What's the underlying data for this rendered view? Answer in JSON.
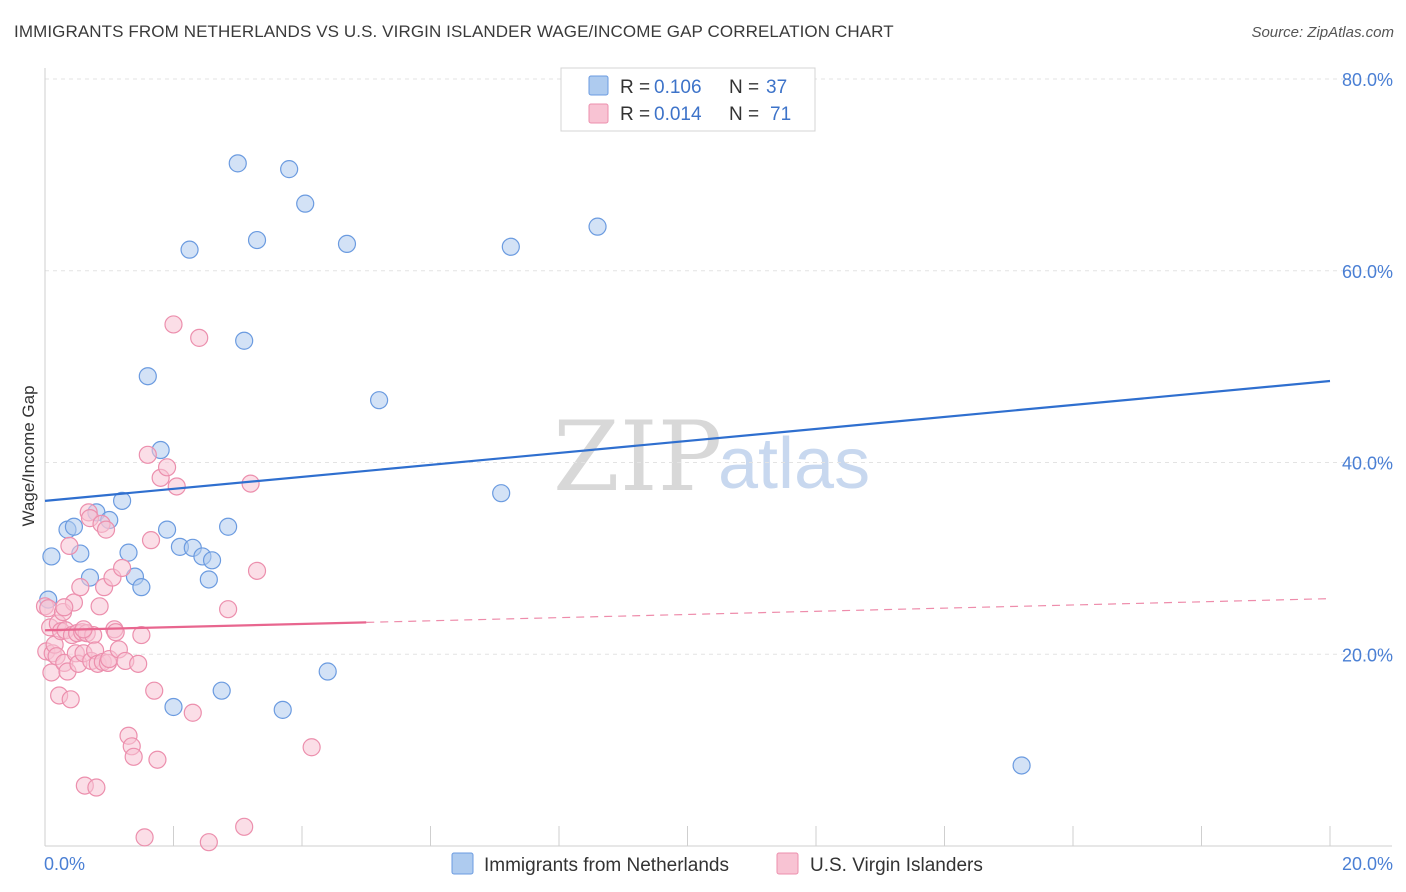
{
  "header": {
    "title": "IMMIGRANTS FROM NETHERLANDS VS U.S. VIRGIN ISLANDER WAGE/INCOME GAP CORRELATION CHART",
    "source": "Source: ZipAtlas.com"
  },
  "watermark": {
    "zip": "ZIP",
    "atlas": "atlas"
  },
  "colors": {
    "blue_fill": "#aecbef",
    "blue_stroke": "#6b9be0",
    "blue_line": "#2f6fcf",
    "pink_fill": "#f8c3d3",
    "pink_stroke": "#ec8fad",
    "pink_line": "#e8668f",
    "tick": "#4a7fd4",
    "grid": "#e3e3e3"
  },
  "legend": {
    "rows": [
      {
        "r_label": "R =",
        "r_value": "0.106",
        "n_label": "N =",
        "n_value": "37"
      },
      {
        "r_label": "R =",
        "r_value": "0.014",
        "n_label": "N =",
        "n_value": "71"
      }
    ]
  },
  "chart_data": {
    "type": "scatter",
    "title": "IMMIGRANTS FROM NETHERLANDS VS U.S. VIRGIN ISLANDER WAGE/INCOME GAP CORRELATION CHART",
    "xlabel": "",
    "ylabel": "Wage/Income Gap",
    "xlim": [
      0,
      20
    ],
    "ylim": [
      0,
      80
    ],
    "x_tick_labels": {
      "left": "0.0%",
      "right": "20.0%"
    },
    "y_ticks": [
      20,
      40,
      60,
      80
    ],
    "y_tick_labels": [
      "20.0%",
      "40.0%",
      "60.0%",
      "80.0%"
    ],
    "legend_position": "top-center",
    "series": [
      {
        "name": "Immigrants from Netherlands",
        "color": "blue",
        "r": 0.106,
        "n": 37,
        "trend": {
          "x0": 0,
          "y0": 36.0,
          "x1": 20,
          "y1": 48.5,
          "dashed_from": null
        },
        "points": [
          [
            0.05,
            25.7
          ],
          [
            0.1,
            30.2
          ],
          [
            0.35,
            33.0
          ],
          [
            0.45,
            33.3
          ],
          [
            0.55,
            30.5
          ],
          [
            0.7,
            28.0
          ],
          [
            0.8,
            34.8
          ],
          [
            1.0,
            34.0
          ],
          [
            1.2,
            36.0
          ],
          [
            1.3,
            30.6
          ],
          [
            1.4,
            28.1
          ],
          [
            1.5,
            27.0
          ],
          [
            1.6,
            49.0
          ],
          [
            1.8,
            41.3
          ],
          [
            1.9,
            33.0
          ],
          [
            2.0,
            14.5
          ],
          [
            2.1,
            31.2
          ],
          [
            2.25,
            62.2
          ],
          [
            2.3,
            31.1
          ],
          [
            2.45,
            30.2
          ],
          [
            2.55,
            27.8
          ],
          [
            2.6,
            29.8
          ],
          [
            2.75,
            16.2
          ],
          [
            2.85,
            33.3
          ],
          [
            3.0,
            71.2
          ],
          [
            3.1,
            52.7
          ],
          [
            3.3,
            63.2
          ],
          [
            3.7,
            14.2
          ],
          [
            3.8,
            70.6
          ],
          [
            4.05,
            67.0
          ],
          [
            4.4,
            18.2
          ],
          [
            4.7,
            62.8
          ],
          [
            5.2,
            46.5
          ],
          [
            7.1,
            36.8
          ],
          [
            7.25,
            62.5
          ],
          [
            8.6,
            64.6
          ],
          [
            15.2,
            8.4
          ]
        ]
      },
      {
        "name": "U.S. Virgin Islanders",
        "color": "pink",
        "r": 0.014,
        "n": 71,
        "trend": {
          "x0": 0,
          "y0": 22.5,
          "x1": 20,
          "y1": 25.8,
          "dashed_from": 5.0
        },
        "points": [
          [
            0.0,
            25.0
          ],
          [
            0.02,
            20.3
          ],
          [
            0.05,
            24.8
          ],
          [
            0.08,
            22.8
          ],
          [
            0.1,
            18.1
          ],
          [
            0.12,
            20.1
          ],
          [
            0.15,
            21.0
          ],
          [
            0.18,
            19.8
          ],
          [
            0.2,
            23.2
          ],
          [
            0.22,
            15.7
          ],
          [
            0.25,
            22.4
          ],
          [
            0.28,
            24.4
          ],
          [
            0.3,
            19.1
          ],
          [
            0.32,
            22.5
          ],
          [
            0.35,
            18.2
          ],
          [
            0.38,
            31.3
          ],
          [
            0.4,
            15.3
          ],
          [
            0.42,
            22.0
          ],
          [
            0.45,
            25.4
          ],
          [
            0.48,
            20.1
          ],
          [
            0.5,
            22.2
          ],
          [
            0.52,
            19.0
          ],
          [
            0.55,
            27.0
          ],
          [
            0.58,
            22.3
          ],
          [
            0.6,
            20.1
          ],
          [
            0.62,
            6.3
          ],
          [
            0.65,
            22.2
          ],
          [
            0.68,
            34.8
          ],
          [
            0.7,
            34.2
          ],
          [
            0.72,
            19.3
          ],
          [
            0.75,
            22.0
          ],
          [
            0.78,
            20.4
          ],
          [
            0.8,
            6.1
          ],
          [
            0.82,
            19.0
          ],
          [
            0.85,
            25.0
          ],
          [
            0.88,
            33.6
          ],
          [
            0.9,
            19.2
          ],
          [
            0.92,
            27.0
          ],
          [
            0.95,
            33.0
          ],
          [
            0.98,
            19.1
          ],
          [
            1.0,
            19.5
          ],
          [
            1.05,
            28.0
          ],
          [
            1.08,
            22.6
          ],
          [
            1.1,
            22.3
          ],
          [
            1.15,
            20.5
          ],
          [
            1.2,
            29.0
          ],
          [
            1.25,
            19.3
          ],
          [
            1.3,
            11.5
          ],
          [
            1.35,
            10.4
          ],
          [
            1.38,
            9.3
          ],
          [
            1.45,
            19.0
          ],
          [
            1.5,
            22.0
          ],
          [
            1.55,
            0.9
          ],
          [
            1.6,
            40.8
          ],
          [
            1.65,
            31.9
          ],
          [
            1.7,
            16.2
          ],
          [
            1.75,
            9.0
          ],
          [
            1.8,
            38.4
          ],
          [
            1.9,
            39.5
          ],
          [
            2.0,
            54.4
          ],
          [
            2.05,
            37.5
          ],
          [
            2.3,
            13.9
          ],
          [
            2.4,
            53.0
          ],
          [
            2.55,
            0.4
          ],
          [
            2.85,
            24.7
          ],
          [
            3.1,
            2.0
          ],
          [
            3.2,
            37.8
          ],
          [
            3.3,
            28.7
          ],
          [
            4.15,
            10.3
          ],
          [
            0.6,
            22.6
          ],
          [
            0.3,
            24.9
          ]
        ]
      }
    ]
  },
  "bottom_legend": {
    "items": [
      {
        "label": "Immigrants from Netherlands"
      },
      {
        "label": "U.S. Virgin Islanders"
      }
    ]
  }
}
